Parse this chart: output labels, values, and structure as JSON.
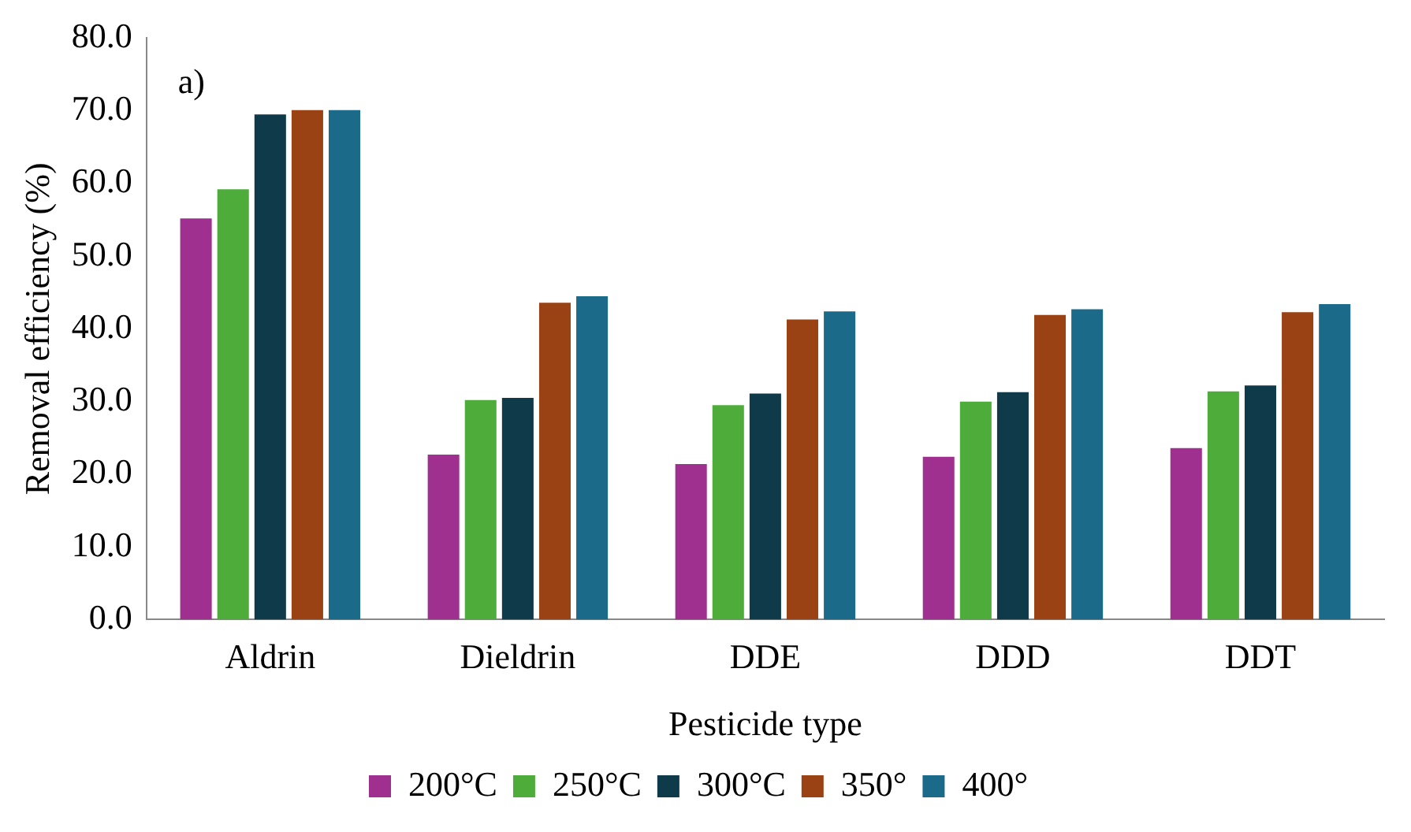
{
  "chart_data": {
    "type": "bar",
    "categories": [
      "Aldrin",
      "Dieldrin",
      "DDE",
      "DDD",
      "DDT"
    ],
    "series": [
      {
        "name": "200°C",
        "color": "#a0308f",
        "values": [
          55.2,
          22.7,
          21.4,
          22.4,
          23.6
        ]
      },
      {
        "name": "250°C",
        "color": "#4eac3a",
        "values": [
          59.2,
          30.2,
          29.5,
          30.0,
          31.4
        ]
      },
      {
        "name": "300°C",
        "color": "#0f3a4a",
        "values": [
          69.5,
          30.5,
          31.1,
          31.3,
          32.2
        ]
      },
      {
        "name": "350°",
        "color": "#9a4214",
        "values": [
          70.1,
          43.6,
          41.3,
          41.9,
          42.3
        ]
      },
      {
        "name": "400°",
        "color": "#1b6a8a",
        "values": [
          70.1,
          44.5,
          42.4,
          42.7,
          43.4
        ]
      }
    ],
    "xlabel": "Pesticide type",
    "ylabel": "Removal efficiency (%)",
    "ylim": [
      0,
      80
    ],
    "yticks": [
      {
        "value": 0,
        "label": "0.0"
      },
      {
        "value": 10,
        "label": "10.0"
      },
      {
        "value": 20,
        "label": "20.0"
      },
      {
        "value": 30,
        "label": "30.0"
      },
      {
        "value": 40,
        "label": "40.0"
      },
      {
        "value": 50,
        "label": "50.0"
      },
      {
        "value": 60,
        "label": "60.0"
      },
      {
        "value": 70,
        "label": "70.0"
      },
      {
        "value": 80,
        "label": "80.0"
      }
    ],
    "annotations": [
      "a)"
    ],
    "grid": false,
    "legend": "bottom"
  }
}
